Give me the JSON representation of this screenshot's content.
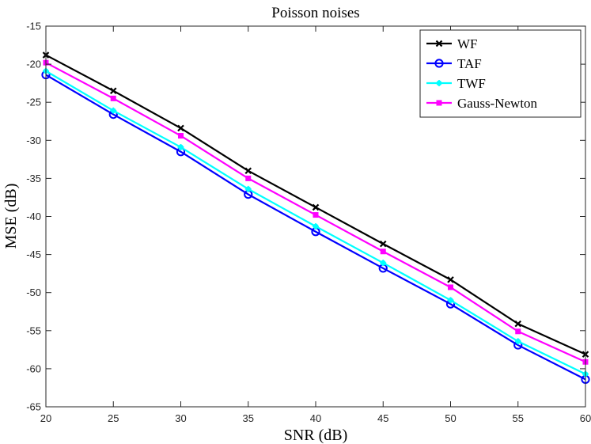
{
  "chart_data": {
    "type": "line",
    "title": "Poisson noises",
    "xlabel": "SNR (dB)",
    "ylabel": "MSE (dB)",
    "x": [
      20,
      25,
      30,
      35,
      40,
      45,
      50,
      55,
      60
    ],
    "xlim": [
      20,
      60
    ],
    "ylim": [
      -65,
      -15
    ],
    "xticks": [
      20,
      25,
      30,
      35,
      40,
      45,
      50,
      55,
      60
    ],
    "yticks": [
      -15,
      -20,
      -25,
      -30,
      -35,
      -40,
      -45,
      -50,
      -55,
      -60,
      -65
    ],
    "grid": false,
    "legend_position": "top-right",
    "series": [
      {
        "name": "WF",
        "color": "#000000",
        "marker": "x",
        "values": [
          -18.8,
          -23.5,
          -28.4,
          -34.0,
          -38.8,
          -43.6,
          -48.3,
          -54.1,
          -58.1
        ]
      },
      {
        "name": "TAF",
        "color": "#0000ff",
        "marker": "circle",
        "values": [
          -21.4,
          -26.6,
          -31.5,
          -37.1,
          -42.0,
          -46.8,
          -51.5,
          -56.9,
          -61.4
        ]
      },
      {
        "name": "TWF",
        "color": "#00ffff",
        "marker": "asterisk",
        "values": [
          -20.9,
          -26.1,
          -30.9,
          -36.4,
          -41.3,
          -46.1,
          -51.0,
          -56.4,
          -60.7
        ]
      },
      {
        "name": "Gauss-Newton",
        "color": "#ff00ff",
        "marker": "square",
        "values": [
          -19.8,
          -24.5,
          -29.4,
          -35.0,
          -39.8,
          -44.6,
          -49.3,
          -55.1,
          -59.1
        ]
      }
    ]
  }
}
